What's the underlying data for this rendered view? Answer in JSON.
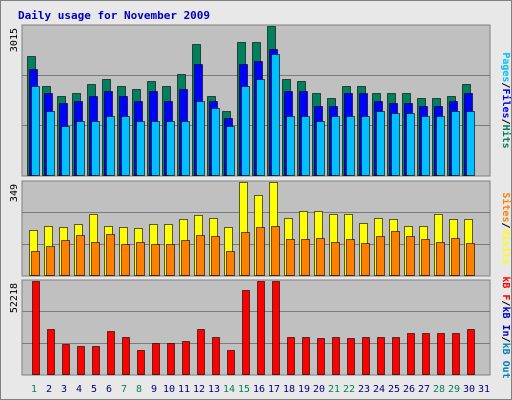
{
  "title": "Daily usage for November 2009",
  "colors": {
    "hits": "#00805c",
    "files": "#0000ff",
    "pages": "#00c0ff",
    "sites": "#ff8000",
    "visits": "#ffff00",
    "kbout": "#0080c0",
    "kbin": "#0000c0",
    "kbf": "#ff0000",
    "panel_bg": "#c0c0c0",
    "weekend_label": "#00805c",
    "weekday_label": "#000080"
  },
  "chart_data": [
    {
      "type": "bar",
      "panel": "usage",
      "ymax_label": "3015",
      "ylim": [
        0,
        3015
      ],
      "right_labels": [
        {
          "text": "Pages",
          "color": "#00c0ff"
        },
        {
          "text": "/",
          "color": "#000000"
        },
        {
          "text": "Files",
          "color": "#0000ff"
        },
        {
          "text": "/",
          "color": "#000000"
        },
        {
          "text": "Hits",
          "color": "#00805c"
        }
      ],
      "categories": [
        "1",
        "2",
        "3",
        "4",
        "5",
        "6",
        "7",
        "8",
        "9",
        "10",
        "11",
        "12",
        "13",
        "14",
        "15",
        "16",
        "17",
        "18",
        "19",
        "20",
        "21",
        "22",
        "23",
        "24",
        "25",
        "26",
        "27",
        "28",
        "29",
        "30",
        "31"
      ],
      "series": [
        {
          "name": "Hits",
          "values": [
            2400,
            1800,
            1600,
            1650,
            1850,
            1950,
            1800,
            1750,
            1900,
            1800,
            2050,
            2650,
            1600,
            1300,
            2700,
            2700,
            3015,
            1950,
            1900,
            1650,
            1550,
            1800,
            1800,
            1650,
            1650,
            1650,
            1550,
            1550,
            1600,
            1850,
            0
          ]
        },
        {
          "name": "Files",
          "values": [
            2150,
            1650,
            1450,
            1500,
            1600,
            1700,
            1600,
            1500,
            1700,
            1500,
            1750,
            2250,
            1500,
            1150,
            2250,
            2300,
            2550,
            1700,
            1700,
            1400,
            1400,
            1650,
            1650,
            1500,
            1450,
            1450,
            1400,
            1400,
            1500,
            1650,
            0
          ]
        },
        {
          "name": "Pages",
          "values": [
            1800,
            1300,
            1000,
            1100,
            1100,
            1200,
            1200,
            1100,
            1100,
            1100,
            1100,
            1500,
            1350,
            1000,
            1800,
            1950,
            2450,
            1200,
            1200,
            1100,
            1200,
            1200,
            1200,
            1300,
            1250,
            1250,
            1200,
            1200,
            1300,
            1300,
            0
          ]
        }
      ]
    },
    {
      "type": "bar",
      "panel": "visits",
      "ymax_label": "349",
      "ylim": [
        0,
        349
      ],
      "right_labels": [
        {
          "text": "Sites",
          "color": "#ff8000"
        },
        {
          "text": "/",
          "color": "#000000"
        },
        {
          "text": "Visits",
          "color": "#ffff00"
        }
      ],
      "categories": [
        "1",
        "2",
        "3",
        "4",
        "5",
        "6",
        "7",
        "8",
        "9",
        "10",
        "11",
        "12",
        "13",
        "14",
        "15",
        "16",
        "17",
        "18",
        "19",
        "20",
        "21",
        "22",
        "23",
        "24",
        "25",
        "26",
        "27",
        "28",
        "29",
        "30",
        "31"
      ],
      "series": [
        {
          "name": "Visits",
          "values": [
            170,
            185,
            180,
            190,
            230,
            185,
            180,
            175,
            190,
            190,
            210,
            225,
            215,
            180,
            349,
            300,
            349,
            215,
            240,
            240,
            230,
            230,
            195,
            215,
            210,
            185,
            185,
            230,
            210,
            210,
            0
          ]
        },
        {
          "name": "Sites",
          "values": [
            90,
            110,
            130,
            150,
            125,
            155,
            115,
            125,
            115,
            115,
            130,
            150,
            145,
            90,
            160,
            180,
            185,
            135,
            135,
            140,
            125,
            135,
            120,
            145,
            165,
            145,
            135,
            125,
            140,
            120,
            0
          ]
        }
      ]
    },
    {
      "type": "bar",
      "panel": "kbytes",
      "ymax_label": "52218",
      "ylim": [
        0,
        52218
      ],
      "right_labels": [
        {
          "text": "kB F",
          "color": "#ff0000"
        },
        {
          "text": "/",
          "color": "#000000"
        },
        {
          "text": "kB In",
          "color": "#0000c0"
        },
        {
          "text": "/",
          "color": "#000000"
        },
        {
          "text": "kB Out",
          "color": "#0080c0"
        }
      ],
      "categories": [
        "1",
        "2",
        "3",
        "4",
        "5",
        "6",
        "7",
        "8",
        "9",
        "10",
        "11",
        "12",
        "13",
        "14",
        "15",
        "16",
        "17",
        "18",
        "19",
        "20",
        "21",
        "22",
        "23",
        "24",
        "25",
        "26",
        "27",
        "28",
        "29",
        "30",
        "31"
      ],
      "series": [
        {
          "name": "kB F",
          "values": [
            52218,
            25000,
            17000,
            15500,
            16000,
            24000,
            21000,
            13500,
            17500,
            17500,
            18500,
            25000,
            21000,
            13500,
            47000,
            52218,
            52218,
            21000,
            21000,
            20000,
            21000,
            20000,
            21000,
            21000,
            21000,
            23000,
            23000,
            23000,
            23000,
            25000,
            0
          ]
        }
      ]
    }
  ],
  "x_labels": [
    {
      "text": "1",
      "weekend": true
    },
    {
      "text": "2",
      "weekend": false
    },
    {
      "text": "3",
      "weekend": false
    },
    {
      "text": "4",
      "weekend": false
    },
    {
      "text": "5",
      "weekend": false
    },
    {
      "text": "6",
      "weekend": false
    },
    {
      "text": "7",
      "weekend": true
    },
    {
      "text": "8",
      "weekend": true
    },
    {
      "text": "9",
      "weekend": false
    },
    {
      "text": "10",
      "weekend": false
    },
    {
      "text": "11",
      "weekend": false
    },
    {
      "text": "12",
      "weekend": false
    },
    {
      "text": "13",
      "weekend": false
    },
    {
      "text": "14",
      "weekend": true
    },
    {
      "text": "15",
      "weekend": true
    },
    {
      "text": "16",
      "weekend": false
    },
    {
      "text": "17",
      "weekend": false
    },
    {
      "text": "18",
      "weekend": false
    },
    {
      "text": "19",
      "weekend": false
    },
    {
      "text": "20",
      "weekend": false
    },
    {
      "text": "21",
      "weekend": true
    },
    {
      "text": "22",
      "weekend": true
    },
    {
      "text": "23",
      "weekend": false
    },
    {
      "text": "24",
      "weekend": false
    },
    {
      "text": "25",
      "weekend": false
    },
    {
      "text": "26",
      "weekend": false
    },
    {
      "text": "27",
      "weekend": false
    },
    {
      "text": "28",
      "weekend": true
    },
    {
      "text": "29",
      "weekend": true
    },
    {
      "text": "30",
      "weekend": false
    },
    {
      "text": "31",
      "weekend": false
    }
  ]
}
